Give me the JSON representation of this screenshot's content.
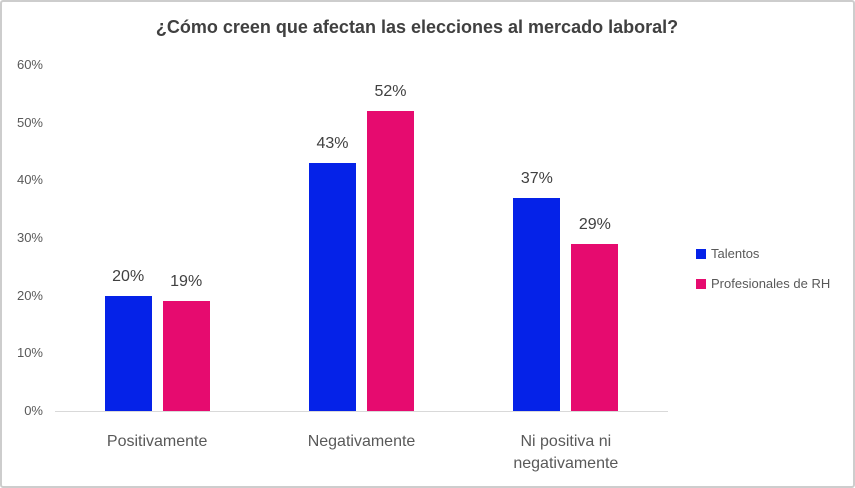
{
  "window": {
    "background": "#ffffff",
    "border_color": "#cdcdcd"
  },
  "chart_data": {
    "type": "bar",
    "title": "¿Cómo creen que afectan las elecciones al mercado laboral?",
    "categories": [
      "Positivamente",
      "Negativamente",
      "Ni positiva ni\nnegativamente"
    ],
    "series": [
      {
        "name": "Talentos",
        "color": "#0522e8",
        "values": [
          20,
          43,
          37
        ],
        "data_labels": [
          "20%",
          "43%",
          "37%"
        ]
      },
      {
        "name": "Profesionales de RH",
        "color": "#e60b6f",
        "values": [
          19,
          52,
          29
        ],
        "data_labels": [
          "19%",
          "52%",
          "29%"
        ]
      }
    ],
    "y_axis": {
      "unit": "%",
      "min": 0,
      "max": 60,
      "tick_values": [
        0,
        10,
        20,
        30,
        40,
        50,
        60
      ],
      "tick_labels": [
        "0%",
        "10%",
        "20%",
        "30%",
        "40%",
        "50%",
        "60%"
      ]
    },
    "grid": "off",
    "legend_position": "right",
    "colors": {
      "axis_line": "#d9d9d9",
      "title_text": "#404040",
      "data_label_text": "#404040",
      "axis_text": "#595959",
      "legend_text": "#595959"
    }
  }
}
